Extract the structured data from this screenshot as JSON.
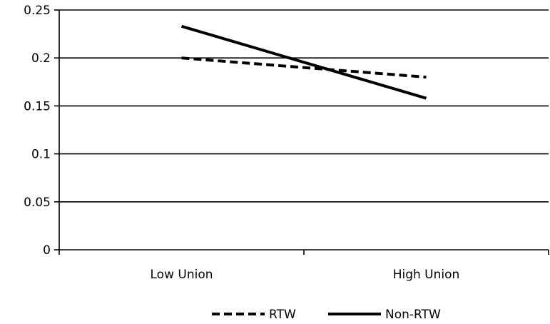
{
  "chart_data": {
    "type": "line",
    "categories": [
      "Low Union",
      "High Union"
    ],
    "series": [
      {
        "name": "RTW",
        "values": [
          0.2,
          0.18
        ],
        "style": "dashed",
        "color": "#000000"
      },
      {
        "name": "Non-RTW",
        "values": [
          0.233,
          0.158
        ],
        "style": "solid",
        "color": "#000000"
      }
    ],
    "y_ticks": [
      "0",
      "0.05",
      "0.1",
      "0.15",
      "0.2",
      "0.25"
    ],
    "ylim": [
      0,
      0.25
    ],
    "grid": true,
    "legend_position": "bottom",
    "title": "",
    "xlabel": "",
    "ylabel": ""
  }
}
